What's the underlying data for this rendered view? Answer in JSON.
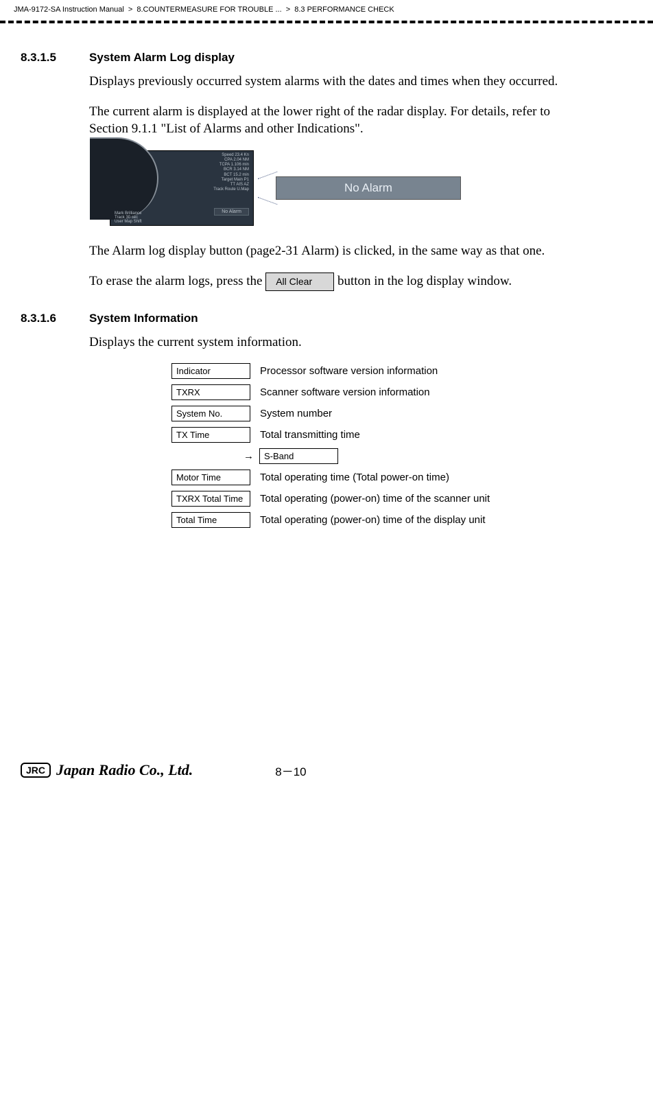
{
  "header": {
    "manual": "JMA-9172-SA Instruction Manual",
    "sep": ">",
    "chapter": "8.COUNTERMEASURE FOR TROUBLE ...",
    "section": "8.3  PERFORMANCE CHECK"
  },
  "sec1": {
    "num": "8.3.1.5",
    "title": "System Alarm Log display",
    "p1": "Displays previously occurred system alarms with the dates and times when they occurred.",
    "p2": "The current alarm is displayed at the lower right of the radar display. For details, refer to Section 9.1.1 \"List of Alarms and other Indications\".",
    "radar": {
      "line1": "Speed 23.4 Kn",
      "line2": "CPA 2.04 NM",
      "line3": "TCPA 1.106 min",
      "line4": "BCR 3.14 NM",
      "line5": "BCT 15.2 min",
      "target": "Target Main P1",
      "tt": "TT AIS AZ",
      "track": "Track Route U.Map",
      "mark": "Mark Brilliance",
      "bottom": "Track 30 sec",
      "bottom2": "User Map Shift",
      "bottom3": "Data HL CPA",
      "bottom4": "Off Off Ring",
      "noalarm_small": "No Alarm",
      "noalarm_big": "No  Alarm"
    },
    "p3a": "The Alarm log display button (page2-31 Alarm) is clicked, in the same way as that one.",
    "p4a": "To erase the alarm logs, press the ",
    "btn": "All Clear",
    "p4b": " button in the log display window."
  },
  "sec2": {
    "num": "8.3.1.6",
    "title": "System Information",
    "p1": "Displays the current system information.",
    "rows": [
      {
        "label": "Indicator",
        "desc": "Processor software version information"
      },
      {
        "label": "TXRX",
        "desc": "Scanner software version information"
      },
      {
        "label": "System No.",
        "desc": "System number"
      },
      {
        "label": "TX Time",
        "desc": "Total transmitting time"
      }
    ],
    "sband_arrow": "→",
    "sband": "S-Band",
    "rows2": [
      {
        "label": "Motor Time",
        "desc": "Total operating time (Total power-on time)"
      },
      {
        "label": "TXRX Total Time",
        "desc": "Total operating (power-on) time of the scanner unit"
      },
      {
        "label": "Total Time",
        "desc": "Total operating (power-on) time of the display unit"
      }
    ]
  },
  "footer": {
    "jrc": "JRC",
    "company": "Japan Radio Co., Ltd.",
    "page": "8－10"
  }
}
